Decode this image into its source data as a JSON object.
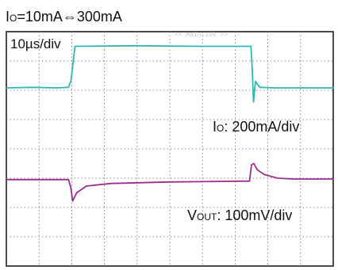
{
  "chart_data": {
    "type": "line",
    "title": {
      "main": "I",
      "sub": "O",
      "rest": "=10mA⇔300mA"
    },
    "time_div_label": "10µs/div",
    "watermark": "<< Main:10k >>",
    "grid": true,
    "x_divisions": 10,
    "y_divisions": 8,
    "x_range_div": [
      0,
      10
    ],
    "y_range_div": [
      0,
      8
    ],
    "colors": {
      "io": "#2fb8b3",
      "vout": "#9a2f8f",
      "grid": "#6a6a6a",
      "frame": "#111111",
      "watermark": "#c7c7c7"
    },
    "series": [
      {
        "name_main": "I",
        "name_sub": "O",
        "scale": ": 200mA/div",
        "x": [
          0,
          0.8,
          1.55,
          1.9,
          1.98,
          2.1,
          4,
          6,
          7.48,
          7.52,
          7.56,
          7.62,
          7.75,
          8.2,
          10
        ],
        "y": [
          6.08,
          6.1,
          6.08,
          6.1,
          6.35,
          7.5,
          7.52,
          7.5,
          7.5,
          6.8,
          5.6,
          6.3,
          6.1,
          6.08,
          6.08
        ]
      },
      {
        "name_main": "V",
        "name_sub": "OUT",
        "scale": ": 100mV/div",
        "x": [
          0,
          1.9,
          1.97,
          2.03,
          2.15,
          2.45,
          3.2,
          5,
          7.44,
          7.5,
          7.57,
          7.68,
          7.9,
          8.3,
          8.8,
          10
        ],
        "y": [
          2.95,
          2.95,
          2.68,
          2.22,
          2.5,
          2.73,
          2.82,
          2.87,
          2.9,
          3.45,
          3.5,
          3.28,
          3.12,
          3,
          2.97,
          2.97
        ]
      }
    ]
  }
}
